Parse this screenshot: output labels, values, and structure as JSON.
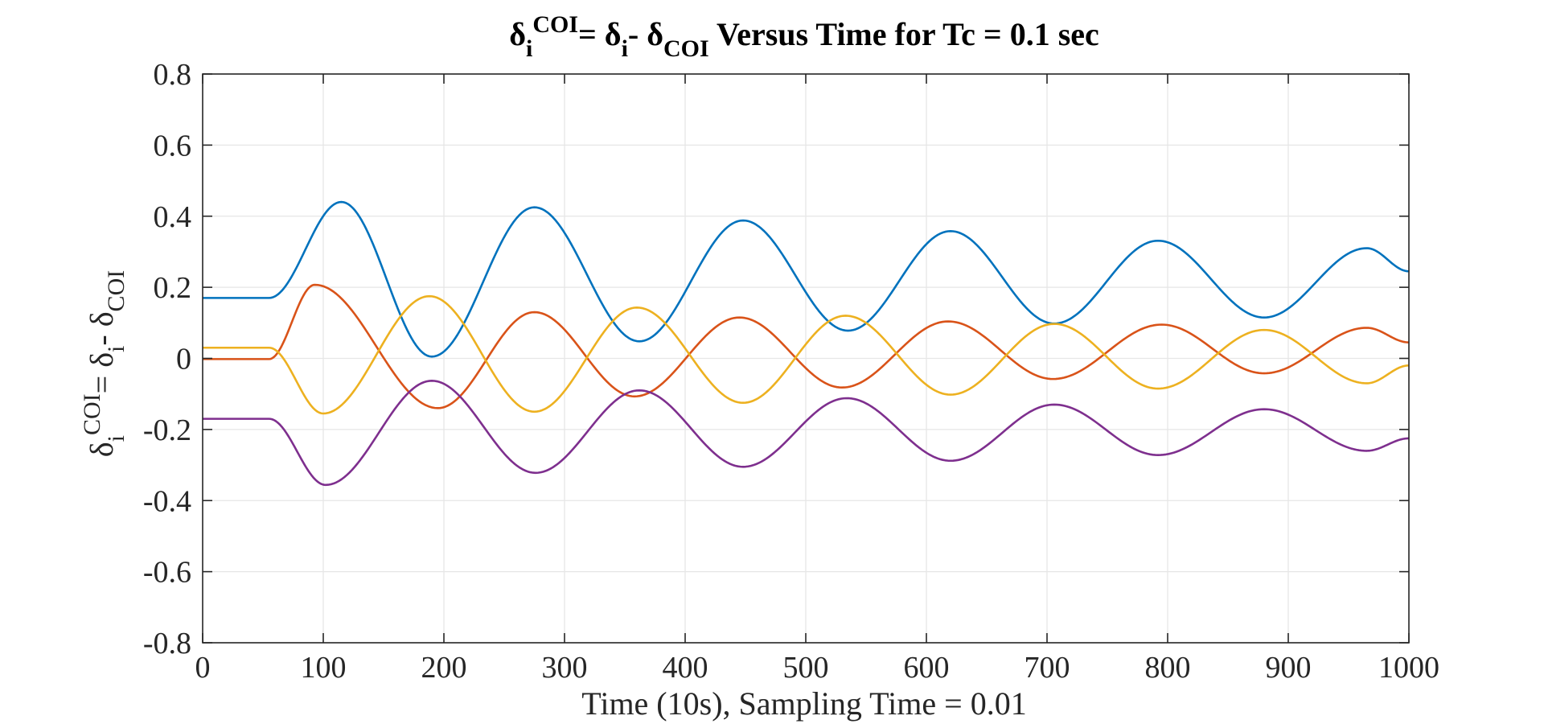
{
  "chart_data": {
    "type": "line",
    "title": {
      "d1": "δ",
      "sub1": "i",
      "sup1": "COI",
      "eq": "= δ",
      "sub2": "i",
      "minus": "- δ",
      "sub3": "COI",
      "rest": " Versus Time for Tc = 0.1 sec"
    },
    "xlabel": "Time (10s), Sampling Time = 0.01",
    "ylabel": {
      "d1": "δ",
      "sub1": "i",
      "sup1": "COI",
      "eq": "= δ",
      "sub2": "i",
      "minus": "- δ",
      "sub3": "COI"
    },
    "xlim": [
      0,
      1000
    ],
    "ylim": [
      -0.8,
      0.8
    ],
    "x_ticks": [
      "0",
      "100",
      "200",
      "300",
      "400",
      "500",
      "600",
      "700",
      "800",
      "900",
      "1000"
    ],
    "y_ticks": [
      "-0.8",
      "-0.6",
      "-0.4",
      "-0.2",
      "0",
      "0.2",
      "0.4",
      "0.6",
      "0.8"
    ],
    "grid": true,
    "series": [
      {
        "color": "#0072BD",
        "x": [
          0,
          55,
          115,
          190,
          275,
          362,
          448,
          535,
          620,
          706,
          792,
          880,
          965,
          1000
        ],
        "y": [
          0.17,
          0.17,
          0.44,
          0.005,
          0.425,
          0.048,
          0.388,
          0.078,
          0.358,
          0.098,
          0.331,
          0.115,
          0.31,
          0.245
        ]
      },
      {
        "color": "#D95319",
        "x": [
          0,
          55,
          93,
          195,
          275,
          358,
          445,
          530,
          618,
          705,
          795,
          880,
          965,
          1000
        ],
        "y": [
          -0.002,
          -0.002,
          0.207,
          -0.14,
          0.13,
          -0.107,
          0.115,
          -0.082,
          0.104,
          -0.058,
          0.095,
          -0.042,
          0.086,
          0.045
        ]
      },
      {
        "color": "#EDB120",
        "x": [
          0,
          55,
          100,
          188,
          275,
          360,
          448,
          533,
          620,
          706,
          792,
          880,
          965,
          1000
        ],
        "y": [
          0.03,
          0.03,
          -0.155,
          0.175,
          -0.15,
          0.143,
          -0.125,
          0.12,
          -0.102,
          0.097,
          -0.085,
          0.08,
          -0.07,
          -0.02
        ]
      },
      {
        "color": "#7E2F8E",
        "x": [
          0,
          55,
          102,
          190,
          276,
          362,
          448,
          534,
          620,
          706,
          792,
          880,
          965,
          1000
        ],
        "y": [
          -0.17,
          -0.17,
          -0.356,
          -0.063,
          -0.322,
          -0.09,
          -0.305,
          -0.112,
          -0.288,
          -0.13,
          -0.272,
          -0.143,
          -0.26,
          -0.225
        ]
      }
    ]
  }
}
